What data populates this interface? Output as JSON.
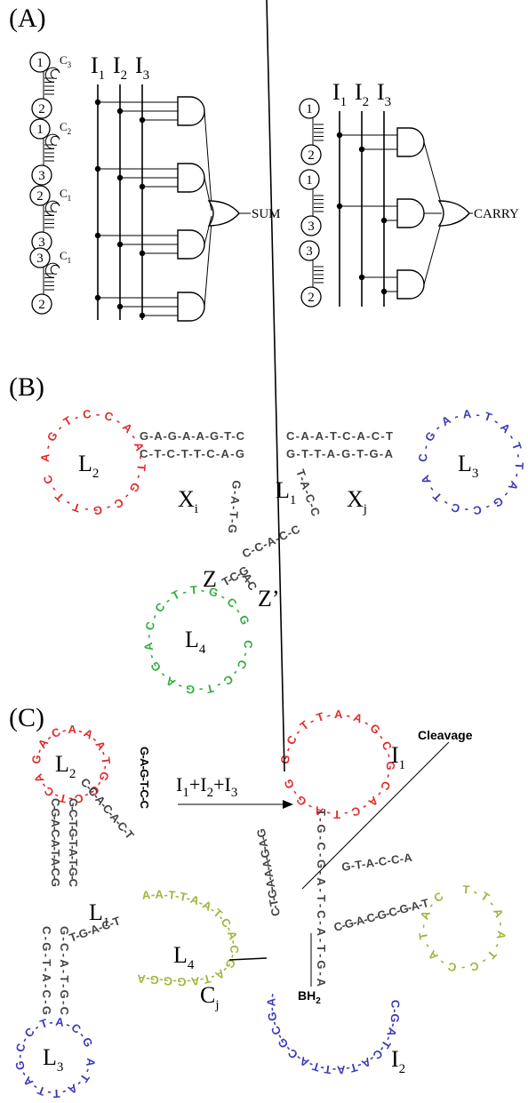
{
  "panel_a": {
    "label": "(A)",
    "sum_circuit": {
      "inputs": [
        {
          "main": "I",
          "sub": "1"
        },
        {
          "main": "I",
          "sub": "2"
        },
        {
          "main": "I",
          "sub": "3"
        }
      ],
      "molecules": [
        {
          "top": "1",
          "bottom": "2",
          "cap": {
            "main": "C",
            "sub": "3"
          }
        },
        {
          "top": "1",
          "bottom": "3",
          "cap": {
            "main": "C",
            "sub": "2"
          }
        },
        {
          "top": "2",
          "bottom": "3",
          "cap": {
            "main": "C",
            "sub": "1"
          }
        },
        {
          "top": "3",
          "bottom": "2",
          "cap": {
            "main": "C",
            "sub": "1"
          }
        }
      ],
      "output": "SUM"
    },
    "carry_circuit": {
      "inputs": [
        {
          "main": "I",
          "sub": "1"
        },
        {
          "main": "I",
          "sub": "2"
        },
        {
          "main": "I",
          "sub": "3"
        }
      ],
      "molecules": [
        {
          "top": "1",
          "bottom": "2"
        },
        {
          "top": "1",
          "bottom": "3"
        },
        {
          "top": "3",
          "bottom": "2"
        }
      ],
      "output": "CARRY"
    }
  },
  "panel_b": {
    "label": "(B)",
    "loops": [
      {
        "name": {
          "main": "L",
          "sub": "2"
        },
        "sequence": "A-G-T-C-C-A-A-T-G-C-G-T-T-C",
        "color": "#e02a2a"
      },
      {
        "name": {
          "main": "L",
          "sub": "3"
        },
        "sequence": "C-G-A-A-T-A-T-T-A-G-C-C-T-A",
        "color": "#3a3ab8"
      },
      {
        "name": {
          "main": "L",
          "sub": "4"
        },
        "sequence": "C-C-C-T-G-A-G-A-C-C-T-T-G-C-G",
        "color": "#2fae3a"
      }
    ],
    "stems": [
      "G-A-G-A-A-G-T-C",
      "C-T-C-T-T-C-A-G",
      "C-A-A-T-C-A-C-T",
      "G-T-T-A-G-T-G-A",
      "G-A-T-G",
      "T-A-C-C",
      "C-C-A-C-C",
      "T-C-G",
      "A-C"
    ],
    "labels": [
      {
        "main": "L",
        "sub": "1"
      },
      {
        "main": "X",
        "sub": "i"
      },
      {
        "main": "X",
        "sub": "j"
      },
      {
        "main": "Z",
        "sub": ""
      },
      {
        "main": "Z’",
        "sub": ""
      }
    ]
  },
  "panel_c": {
    "label": "(C)",
    "loops": [
      {
        "name": {
          "main": "L",
          "sub": "2"
        },
        "sequence": "G-A-C-A-A-A-T-G-G-C-T-C-A",
        "color": "#e02a2a"
      },
      {
        "name": {
          "main": "L",
          "sub": "3"
        },
        "sequence": "A-T-A-T-T-A-G-C-C-T-A-C-G",
        "color": "#3a3ab8"
      },
      {
        "name": {
          "main": "I",
          "sub": "1"
        },
        "sequence": "G-C-T-T-A-A-G-C-G-C-A-C-T-A-G-G",
        "color": "#e02a2a"
      },
      {
        "name": {
          "main": "I",
          "sub": "2"
        },
        "sequence": "C-G-A-T-C-A-T-A-T-T-A-C-G-C-G-A-T",
        "color": "#3a3ab8"
      }
    ],
    "green": [
      {
        "name": {
          "main": "L",
          "sub": "4"
        },
        "sequence": "A-A-T-T-A-A-T-C-A-C-G-A-T-A-G-G-G-A",
        "color": "#a4b23c"
      },
      {
        "name": {
          "main": "C",
          "sub": "j"
        },
        "sequence": "T-T-A-A-T-C-C-A-T-A-C",
        "color": "#a4b23c"
      }
    ],
    "stems": [
      "C-G-A-C-A-T-A-C-G",
      "G-C-T-G-T-A-T-G-C",
      "C-C-A-C-A-C-T",
      "G-A-G-T-C-C",
      "C-G-T-A-C-G",
      "G-C-A-T-G-C",
      "T-G-A-C-T",
      "C-T-G-A-A-A-G-A-G",
      "T-G-C-G-A-T-C-A-T-G-A",
      "G-T-A-C-C-A",
      "C-G-A-C-G-C-G-A-T"
    ],
    "reaction": {
      "main": "I",
      "subs": [
        "1",
        "2",
        "3"
      ],
      "plus": "+"
    },
    "cleavage": "Cleavage",
    "bh": {
      "main": "BH",
      "sub": "2"
    }
  }
}
